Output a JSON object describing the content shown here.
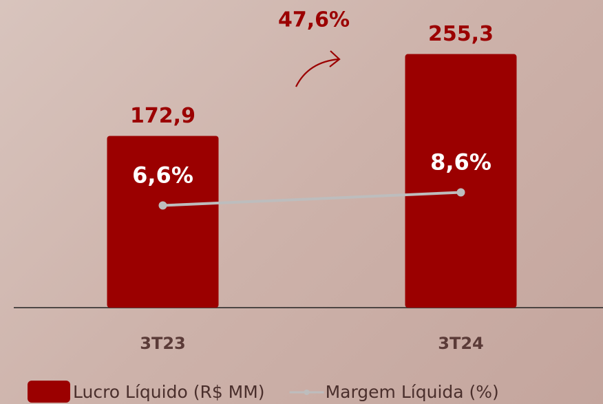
{
  "chart_data": {
    "type": "bar",
    "categories": [
      "3T23",
      "3T24"
    ],
    "series": [
      {
        "name": "Lucro Líquido (R$ MM)",
        "type": "bar",
        "color": "#9b0000",
        "values": [
          172.9,
          255.3
        ],
        "value_labels": [
          "172,9",
          "255,3"
        ]
      },
      {
        "name": "Margem Líquida (%)",
        "type": "line",
        "axis": "y2",
        "color": "#bdbdbd",
        "values": [
          6.6,
          8.6
        ],
        "value_labels": [
          "6,6%",
          "8,6%"
        ]
      }
    ],
    "annotation": "47,6%",
    "ylim": [
      0,
      300
    ],
    "y2lim": [
      -9,
      36.5
    ]
  }
}
